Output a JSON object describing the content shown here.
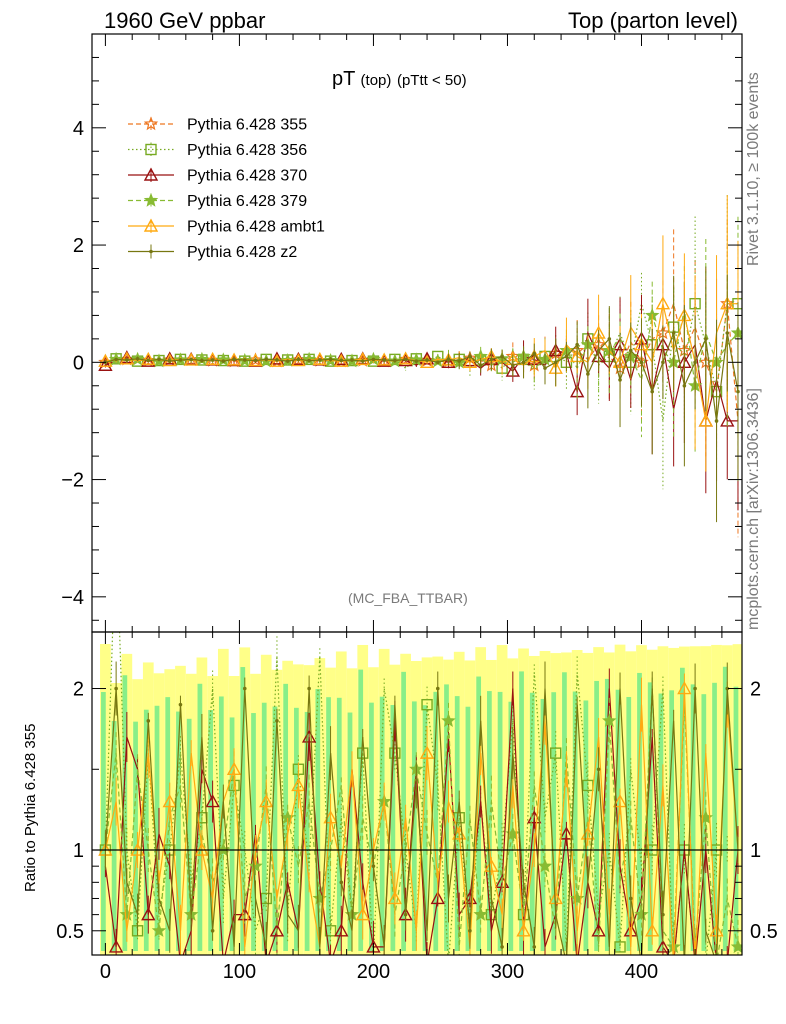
{
  "header": {
    "left": "1960 GeV ppbar",
    "right": "Top (parton level)"
  },
  "plot_title": {
    "main": "pT",
    "sub1": "(top)",
    "sub2": "(pTtt < 50)"
  },
  "analysis_label": "(MC_FBA_TTBAR)",
  "side_labels": {
    "rivet": "Rivet 3.1.10, ≥ 100k events",
    "mcplots": "mcplots.cern.ch [arXiv:1306.3436]"
  },
  "ratio_ylabel": "Ratio to Pythia 6.428 355",
  "colors": {
    "s355": "#ee7722",
    "s356": "#77aa22",
    "s370": "#991111",
    "s379": "#88bb33",
    "ambt1": "#ffaa11",
    "z2": "#777711",
    "band_yellow": "#ffff88",
    "band_green": "#88ee88"
  },
  "chart_data": [
    {
      "type": "line",
      "panel": "main",
      "xlim": [
        -10,
        475
      ],
      "ylim": [
        -4.6,
        5.6
      ],
      "yticks": [
        "4",
        "2",
        "0",
        "−2",
        "−4"
      ],
      "xticks": [
        "0",
        "100",
        "200",
        "300",
        "400"
      ],
      "legend_position": "top-left",
      "x": [
        0,
        8,
        16,
        24,
        32,
        40,
        48,
        56,
        64,
        72,
        80,
        88,
        96,
        104,
        112,
        120,
        128,
        136,
        144,
        152,
        160,
        168,
        176,
        184,
        192,
        200,
        208,
        216,
        224,
        232,
        240,
        248,
        256,
        264,
        272,
        280,
        288,
        296,
        304,
        312,
        320,
        328,
        336,
        344,
        352,
        360,
        368,
        376,
        384,
        392,
        400,
        408,
        416,
        424,
        432,
        440,
        448,
        456,
        464,
        472
      ],
      "series": [
        {
          "name": "Pythia 6.428 355",
          "key": "s355",
          "marker": "star-open",
          "dash": "dashed",
          "values": [
            0.0,
            0.02,
            0.05,
            0.04,
            0.03,
            0.05,
            0.04,
            0.03,
            0.04,
            0.05,
            0.03,
            0.04,
            0.02,
            0.03,
            0.04,
            0.03,
            0.02,
            0.03,
            0.04,
            0.02,
            0.03,
            0.04,
            0.02,
            0.05,
            0.03,
            0.06,
            0.02,
            0.03,
            0.05,
            0.0,
            0.03,
            0.06,
            0.02,
            0.0,
            0.07,
            0.03,
            -0.05,
            0.03,
            0.1,
            0.0,
            -0.05,
            0.08,
            0.15,
            0.1,
            0.2,
            0.05,
            0.3,
            0.1,
            -0.1,
            0.35,
            0.0,
            0.4,
            0.5,
            1.0,
            0.2,
            0.6,
            0.0,
            -0.5,
            1.0,
            -1.0
          ]
        },
        {
          "name": "Pythia 6.428 356",
          "key": "s356",
          "marker": "square-open",
          "dash": "dotted",
          "values": [
            -0.02,
            0.06,
            0.04,
            0.02,
            0.05,
            0.03,
            0.04,
            0.05,
            0.03,
            0.04,
            0.05,
            0.03,
            0.04,
            0.02,
            0.04,
            0.05,
            0.03,
            0.04,
            0.03,
            0.05,
            0.03,
            0.02,
            0.04,
            0.03,
            0.05,
            0.02,
            0.04,
            0.05,
            -0.1,
            0.06,
            0.02,
            0.1,
            0.0,
            0.05,
            -0.08,
            0.04,
            0.08,
            -0.1,
            0.1,
            0.05,
            -0.15,
            0.1,
            0.15,
            0.0,
            0.25,
            0.4,
            -0.05,
            0.1,
            0.5,
            0.0,
            1.0,
            0.3,
            -1.0,
            0.6,
            0.0,
            1.0,
            0.3,
            -0.5,
            1.0,
            1.0
          ]
        },
        {
          "name": "Pythia 6.428 370",
          "key": "s370",
          "marker": "triangle-open",
          "dash": "solid",
          "values": [
            -0.05,
            0.03,
            0.08,
            0.06,
            0.02,
            0.04,
            0.06,
            0.03,
            0.05,
            0.03,
            0.04,
            0.06,
            0.03,
            0.05,
            0.02,
            0.04,
            0.06,
            0.02,
            0.05,
            0.03,
            0.04,
            0.02,
            0.05,
            0.03,
            0.06,
            0.04,
            0.02,
            0.05,
            0.03,
            -0.05,
            0.06,
            0.04,
            0.0,
            0.05,
            0.03,
            -0.1,
            0.05,
            0.0,
            -0.15,
            0.1,
            0.05,
            -0.05,
            0.2,
            0.15,
            -0.5,
            0.5,
            0.1,
            -0.1,
            0.3,
            -0.3,
            0.4,
            -0.5,
            0.3,
            -0.8,
            0.0,
            0.3,
            -1.0,
            -0.3,
            -1.0,
            -1.0
          ]
        },
        {
          "name": "Pythia 6.428 379",
          "key": "s379",
          "marker": "star-filled",
          "dash": "dashed",
          "values": [
            0.01,
            0.05,
            0.03,
            0.05,
            0.04,
            0.02,
            0.05,
            0.04,
            0.03,
            0.05,
            0.02,
            0.04,
            0.05,
            0.03,
            0.04,
            0.02,
            0.05,
            0.03,
            0.04,
            0.05,
            0.02,
            0.03,
            0.06,
            0.02,
            0.04,
            0.05,
            0.03,
            0.02,
            0.05,
            0.04,
            0.05,
            0.02,
            0.08,
            0.0,
            0.04,
            0.1,
            -0.05,
            0.06,
            0.0,
            0.1,
            -0.1,
            0.05,
            0.0,
            0.2,
            -0.1,
            0.3,
            0.0,
            0.2,
            0.4,
            0.1,
            -0.3,
            0.8,
            0.2,
            0.0,
            0.9,
            -0.4,
            0.5,
            0.0,
            0.3,
            0.5
          ]
        },
        {
          "name": "Pythia 6.428 ambt1",
          "key": "ambt1",
          "marker": "triangle-open",
          "dash": "solid",
          "values": [
            0.02,
            0.04,
            0.06,
            0.03,
            0.05,
            0.04,
            0.03,
            0.05,
            0.04,
            0.02,
            0.05,
            0.03,
            0.04,
            0.05,
            0.03,
            0.04,
            0.02,
            0.05,
            0.03,
            0.04,
            0.05,
            0.03,
            0.02,
            0.04,
            0.05,
            0.03,
            0.04,
            0.02,
            0.06,
            0.03,
            0.0,
            0.05,
            0.04,
            0.08,
            0.0,
            0.05,
            0.1,
            0.0,
            0.05,
            -0.05,
            0.1,
            0.2,
            -0.1,
            0.3,
            0.1,
            0.0,
            0.5,
            0.2,
            0.0,
            0.6,
            0.3,
            0.0,
            1.0,
            0.2,
            0.8,
            0.0,
            -1.0,
            0.5,
            1.0,
            1.0
          ]
        },
        {
          "name": "Pythia 6.428 z2",
          "key": "z2",
          "marker": "dot",
          "dash": "solid",
          "values": [
            0.0,
            0.05,
            0.04,
            0.06,
            0.03,
            0.05,
            0.02,
            0.04,
            0.05,
            0.03,
            0.04,
            0.02,
            0.05,
            0.04,
            0.03,
            0.05,
            0.04,
            0.02,
            0.05,
            0.03,
            0.04,
            0.05,
            0.03,
            0.04,
            0.02,
            0.05,
            0.04,
            0.03,
            0.05,
            0.02,
            0.04,
            0.0,
            0.05,
            0.02,
            0.1,
            -0.05,
            0.05,
            0.1,
            -0.05,
            0.0,
            0.15,
            -0.1,
            0.0,
            0.1,
            0.3,
            -0.2,
            0.2,
            0.4,
            -0.3,
            0.2,
            0.0,
            -0.5,
            0.0,
            0.5,
            -0.4,
            0.0,
            0.4,
            -1.0,
            0.5,
            -0.5
          ]
        }
      ]
    },
    {
      "type": "line",
      "panel": "ratio",
      "ylabel": "Ratio to Pythia 6.428 355",
      "ylim": [
        0.35,
        2.35
      ],
      "yticks": [
        "2",
        "1",
        "0.5"
      ],
      "reference_line": 1,
      "x": [
        0,
        8,
        16,
        24,
        32,
        40,
        48,
        56,
        64,
        72,
        80,
        88,
        96,
        104,
        112,
        120,
        128,
        136,
        144,
        152,
        160,
        168,
        176,
        184,
        192,
        200,
        208,
        216,
        224,
        232,
        240,
        248,
        256,
        264,
        272,
        280,
        288,
        296,
        304,
        312,
        320,
        328,
        336,
        344,
        352,
        360,
        368,
        376,
        384,
        392,
        400,
        408,
        416,
        424,
        432,
        440,
        448,
        456,
        464,
        472
      ],
      "series": [
        {
          "key": "s356",
          "values": [
            1.0,
            3.0,
            1.0,
            0.5,
            1.6,
            0.6,
            1.0,
            1.6,
            0.8,
            1.2,
            2.0,
            0.7,
            1.4,
            1.0,
            0.5,
            0.7,
            2.2,
            0.6,
            1.5,
            0.9,
            2.2,
            0.5,
            1.2,
            0.6,
            1.6,
            0.3,
            2.0,
            1.6,
            1.0,
            0.5,
            1.9,
            1.4,
            0.3,
            1.2,
            0.5,
            1.3,
            0.6,
            1.0,
            1.8,
            0.6,
            2.1,
            1.2,
            1.6,
            0.4,
            2.1,
            1.4,
            0.6,
            1.0,
            0.4,
            1.5,
            0.9,
            1.0,
            2.0,
            0.3,
            1.0,
            0.3,
            0.3,
            1.0,
            1.0,
            1.0
          ]
        },
        {
          "key": "s370",
          "values": [
            0.9,
            0.4,
            1.7,
            1.5,
            0.6,
            1.1,
            0.9,
            0.3,
            0.5,
            1.5,
            1.3,
            0.3,
            0.6,
            0.6,
            1.1,
            0.3,
            0.5,
            0.8,
            0.5,
            1.7,
            0.8,
            0.3,
            0.5,
            1.5,
            0.8,
            0.4,
            0.4,
            1.8,
            0.6,
            1.5,
            0.3,
            0.7,
            1.7,
            0.6,
            0.7,
            1.3,
            0.5,
            0.8,
            2.0,
            0.5,
            1.2,
            0.4,
            0.6,
            1.1,
            0.3,
            0.8,
            0.5,
            2.0,
            0.9,
            0.5,
            0.7,
            1.7,
            0.4,
            0.3,
            1.0,
            0.3,
            1.0,
            0.3,
            0.3,
            1.0
          ]
        },
        {
          "key": "s379",
          "values": [
            1.0,
            1.6,
            0.6,
            1.5,
            1.0,
            0.5,
            1.2,
            1.4,
            0.6,
            1.1,
            0.8,
            1.0,
            1.5,
            0.7,
            0.9,
            1.4,
            0.5,
            1.2,
            0.9,
            1.3,
            0.7,
            1.0,
            1.4,
            0.6,
            1.2,
            0.9,
            1.3,
            0.6,
            1.0,
            1.5,
            1.1,
            0.8,
            1.8,
            0.4,
            1.2,
            0.6,
            1.3,
            0.8,
            1.1,
            0.6,
            1.4,
            0.9,
            0.5,
            1.6,
            0.7,
            1.2,
            0.4,
            1.8,
            0.8,
            1.2,
            0.6,
            2.0,
            0.5,
            0.4,
            1.9,
            0.4,
            1.2,
            0.3,
            0.7,
            0.4
          ]
        },
        {
          "key": "ambt1",
          "values": [
            1.0,
            1.3,
            0.5,
            1.0,
            1.6,
            0.8,
            1.3,
            0.5,
            1.6,
            1.0,
            0.7,
            1.3,
            1.5,
            0.4,
            1.0,
            1.3,
            0.7,
            1.1,
            1.4,
            0.8,
            0.4,
            1.2,
            0.9,
            1.5,
            0.6,
            1.0,
            1.3,
            0.7,
            1.2,
            0.5,
            1.6,
            0.8,
            1.3,
            1.1,
            0.4,
            1.6,
            0.9,
            0.6,
            1.4,
            0.5,
            1.0,
            1.8,
            0.7,
            1.5,
            0.5,
            1.1,
            1.7,
            0.6,
            1.3,
            0.4,
            1.9,
            0.5,
            1.4,
            0.3,
            2.0,
            0.3,
            1.6,
            0.5,
            1.9,
            1.0
          ]
        },
        {
          "key": "z2",
          "values": [
            1.0,
            2.0,
            0.8,
            0.6,
            1.8,
            0.7,
            0.5,
            1.9,
            0.6,
            1.7,
            0.5,
            1.3,
            0.4,
            2.0,
            0.7,
            0.4,
            1.8,
            0.6,
            0.5,
            2.0,
            0.4,
            1.6,
            0.8,
            0.5,
            1.7,
            0.9,
            0.4,
            1.9,
            0.6,
            1.4,
            0.5,
            2.0,
            0.7,
            1.3,
            0.5,
            1.8,
            0.7,
            0.4,
            1.6,
            0.8,
            0.4,
            2.0,
            0.6,
            0.3,
            1.9,
            0.8,
            1.5,
            0.4,
            2.0,
            0.7,
            0.3,
            2.0,
            0.6,
            1.8,
            0.3,
            2.0,
            0.5,
            0.3,
            2.0,
            1.0
          ]
        }
      ]
    }
  ]
}
